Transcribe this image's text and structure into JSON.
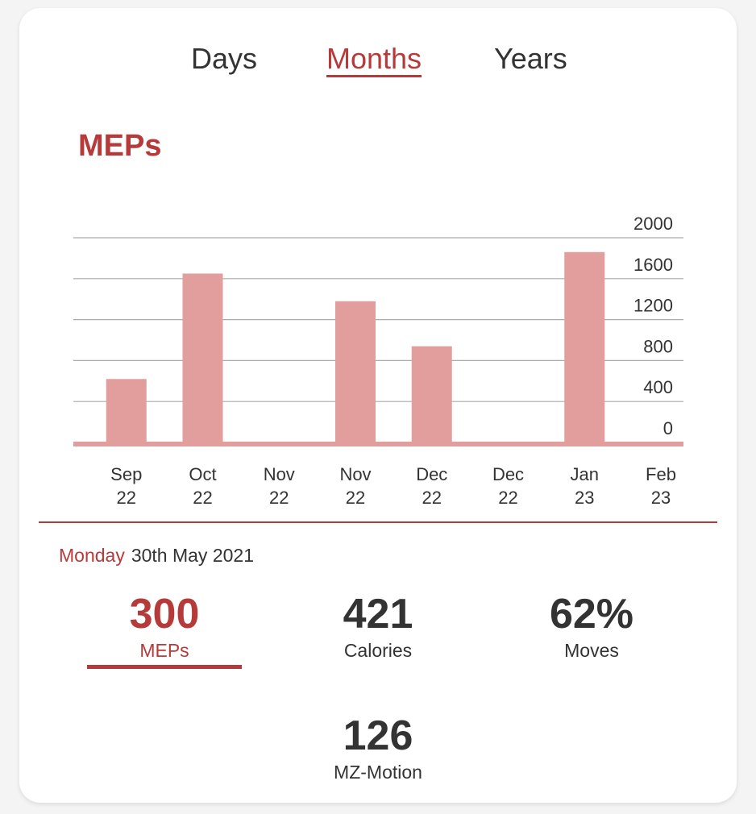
{
  "tabs": [
    {
      "label": "Days",
      "active": false
    },
    {
      "label": "Months",
      "active": true
    },
    {
      "label": "Years",
      "active": false
    }
  ],
  "colors": {
    "accent": "#b73a3a",
    "bar": "#e29d9d",
    "grid": "#aaaaaa",
    "text": "#333333"
  },
  "chart_data": {
    "type": "bar",
    "title": "MEPs",
    "categories": [
      "Sep 22",
      "Sep 22",
      "Oct 22",
      "Nov 22",
      "Nov 22",
      "Dec 22",
      "Dec 22",
      "Jan 23",
      "Feb 23"
    ],
    "values": [
      0,
      620,
      1650,
      0,
      1380,
      940,
      0,
      1860,
      0
    ],
    "ylim": [
      0,
      2000
    ],
    "yticks": [
      0,
      400,
      800,
      1200,
      1600,
      2000
    ],
    "y_axis_position": "right",
    "grid": true,
    "legend": "none"
  },
  "selected_day": {
    "weekday": "Monday",
    "date": "30th May 2021"
  },
  "stats": [
    {
      "value": "300",
      "label": "MEPs",
      "active": true
    },
    {
      "value": "421",
      "label": "Calories",
      "active": false
    },
    {
      "value": "62%",
      "label": "Moves",
      "active": false
    },
    {
      "value": "126",
      "label": "MZ-Motion",
      "active": false
    }
  ]
}
